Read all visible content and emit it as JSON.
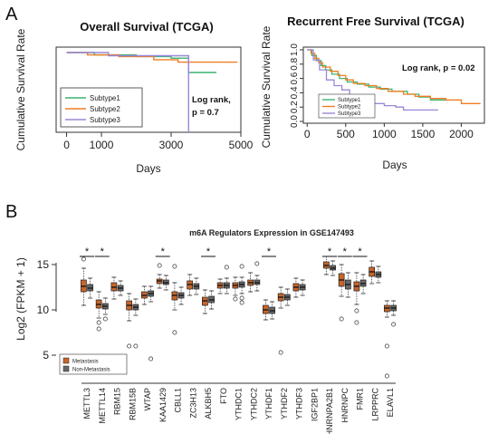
{
  "panel_labels": [
    "A",
    "B"
  ],
  "colors": {
    "subtype1": "#3cb371",
    "subtype2": "#ef7d22",
    "subtype3": "#9b87d8",
    "metastasis": "#c8652a",
    "non_metastasis": "#686868"
  },
  "chart_data": [
    {
      "type": "line",
      "title": "Overall Survival (TCGA)",
      "xlabel": "Days",
      "ylabel": "Cumulative Survival Rate",
      "xlim": [
        -300,
        5000
      ],
      "ylim": [
        0,
        1
      ],
      "xticks": [
        "0",
        "1000",
        "3000",
        "5000"
      ],
      "xtick_values": [
        0,
        1000,
        3000,
        5000
      ],
      "legend_position": "bottom-left",
      "annotation": [
        "Log rank,",
        "p = 0.7"
      ],
      "series": [
        {
          "name": "Subtype1",
          "color": "#3cb371",
          "x": [
            0,
            800,
            2000,
            3000,
            3500,
            3500,
            4300
          ],
          "y": [
            1.0,
            0.97,
            0.95,
            0.93,
            0.93,
            0.75,
            0.75
          ]
        },
        {
          "name": "Subtype2",
          "color": "#ef7d22",
          "x": [
            0,
            600,
            1500,
            2500,
            3200,
            3600,
            4900
          ],
          "y": [
            1.0,
            0.97,
            0.95,
            0.91,
            0.88,
            0.88,
            0.88
          ]
        },
        {
          "name": "Subtype3",
          "color": "#9b87d8",
          "x": [
            0,
            1200,
            2000,
            3500,
            3500
          ],
          "y": [
            1.0,
            0.96,
            0.96,
            0.96,
            0.0
          ]
        }
      ]
    },
    {
      "type": "line",
      "title": "Recurrent Free Survival (TCGA)",
      "xlabel": "Days",
      "ylabel": "Cumulative Survival Rate",
      "xlim": [
        -50,
        2300
      ],
      "ylim": [
        0,
        1
      ],
      "xticks": [
        "0",
        "500",
        "1000",
        "1500",
        "2000"
      ],
      "xtick_values": [
        0,
        500,
        1000,
        1500,
        2000
      ],
      "yticks": [
        "0.0",
        "0.2",
        "0.4",
        "0.6",
        "0.8",
        "1.0"
      ],
      "ytick_values": [
        0,
        0.2,
        0.4,
        0.6,
        0.8,
        1.0
      ],
      "legend_position": "bottom-left",
      "annotation": [
        "Log rank, p = 0.02"
      ],
      "series": [
        {
          "name": "Subtype1",
          "color": "#3cb371",
          "x": [
            0,
            60,
            120,
            180,
            240,
            320,
            420,
            520,
            650,
            800,
            950,
            1100,
            1300,
            1450,
            1600,
            1800
          ],
          "y": [
            1.0,
            0.92,
            0.85,
            0.78,
            0.72,
            0.66,
            0.6,
            0.55,
            0.52,
            0.48,
            0.45,
            0.42,
            0.38,
            0.34,
            0.3,
            0.3
          ]
        },
        {
          "name": "Subtype2",
          "color": "#ef7d22",
          "x": [
            0,
            50,
            100,
            150,
            200,
            300,
            400,
            500,
            600,
            750,
            900,
            1050,
            1250,
            1400,
            1600,
            1800,
            2000,
            2250
          ],
          "y": [
            1.0,
            0.95,
            0.88,
            0.82,
            0.76,
            0.7,
            0.64,
            0.58,
            0.53,
            0.5,
            0.46,
            0.42,
            0.38,
            0.35,
            0.32,
            0.3,
            0.25,
            0.25
          ]
        },
        {
          "name": "Subtype3",
          "color": "#9b87d8",
          "x": [
            0,
            80,
            160,
            250,
            350,
            450,
            550,
            700,
            850,
            1000,
            1150,
            1250,
            1700
          ],
          "y": [
            1.0,
            0.86,
            0.72,
            0.58,
            0.5,
            0.44,
            0.36,
            0.3,
            0.25,
            0.22,
            0.2,
            0.16,
            0.16
          ]
        }
      ]
    },
    {
      "type": "box",
      "title": "m6A Regulators Expression in GSE147493",
      "ylabel": "Log2 (FPKM + 1)",
      "ylim": [
        2,
        18
      ],
      "yticks": [
        "5",
        "10",
        "15"
      ],
      "ytick_values": [
        5,
        10,
        15
      ],
      "legend_position": "bottom-left",
      "significance_marker": "*",
      "categories": [
        "METTL3",
        "METTL14",
        "RBM15",
        "RBM15B",
        "WTAP",
        "KAA1429",
        "CBLL1",
        "ZC3H13",
        "ALKBH5",
        "FTO",
        "YTHDC1",
        "YTHDC2",
        "YTHDF1",
        "YTHDF2",
        "YTHDF3",
        "IGF2BP1",
        "HNRNPA2B1",
        "HNRNPC",
        "FMR1",
        "LRPPRC",
        "ELAVL1"
      ],
      "significant": [
        true,
        true,
        false,
        false,
        false,
        true,
        false,
        false,
        true,
        false,
        false,
        false,
        true,
        false,
        false,
        false,
        true,
        true,
        true,
        false,
        false
      ],
      "series": [
        {
          "name": "Metastasis",
          "color": "#c8652a",
          "q1": [
            12.0,
            10.2,
            12.1,
            10.0,
            11.3,
            12.9,
            11.1,
            12.3,
            10.5,
            12.4,
            12.4,
            12.7,
            9.6,
            11.0,
            12.1,
            null,
            14.6,
            12.6,
            12.1,
            13.7,
            9.8
          ],
          "median": [
            12.6,
            10.6,
            12.5,
            10.5,
            11.6,
            13.2,
            11.6,
            12.8,
            11.0,
            12.7,
            12.7,
            13.0,
            10.0,
            11.4,
            12.5,
            null,
            14.9,
            13.3,
            12.6,
            14.2,
            10.2
          ],
          "q3": [
            13.3,
            11.1,
            13.0,
            11.0,
            12.0,
            13.4,
            12.0,
            13.2,
            11.4,
            13.0,
            13.0,
            13.3,
            10.5,
            11.8,
            12.9,
            null,
            15.3,
            14.0,
            13.1,
            14.7,
            10.5
          ],
          "lo": [
            10.5,
            9.1,
            11.2,
            8.8,
            10.6,
            12.4,
            10.0,
            11.6,
            9.6,
            11.8,
            11.6,
            12.0,
            8.9,
            10.2,
            11.4,
            null,
            13.9,
            11.5,
            10.6,
            12.9,
            9.2
          ],
          "hi": [
            14.6,
            12.0,
            13.6,
            11.8,
            12.6,
            13.9,
            13.0,
            13.9,
            12.2,
            13.4,
            13.6,
            14.1,
            11.1,
            12.5,
            13.5,
            null,
            15.9,
            15.0,
            14.1,
            15.4,
            11.0
          ],
          "outliers": [
            [
              15.6
            ],
            [
              8.6,
              7.9
            ],
            [],
            [
              6.0
            ],
            [],
            [
              14.9
            ],
            [
              7.5,
              14.8
            ],
            [],
            [],
            [],
            [
              11.2
            ],
            [],
            [],
            [
              5.3
            ],
            [],
            [],
            [],
            [
              9.0
            ],
            [
              9.9,
              8.6
            ],
            [],
            [
              6.0,
              2.7
            ]
          ]
        },
        {
          "name": "Non-Metastasis",
          "color": "#686868",
          "q1": [
            12.1,
            10.1,
            12.1,
            10.0,
            11.5,
            12.8,
            11.3,
            12.3,
            10.8,
            12.4,
            12.5,
            12.8,
            9.6,
            11.1,
            12.2,
            null,
            14.4,
            12.3,
            12.6,
            13.6,
            9.9
          ],
          "median": [
            12.4,
            10.4,
            12.4,
            10.3,
            11.8,
            13.0,
            11.6,
            12.6,
            11.1,
            12.7,
            12.8,
            13.0,
            9.9,
            11.4,
            12.5,
            null,
            14.6,
            12.8,
            12.9,
            13.9,
            10.2
          ],
          "q3": [
            12.8,
            10.7,
            12.7,
            10.6,
            12.1,
            13.3,
            11.9,
            12.9,
            11.5,
            13.0,
            13.1,
            13.3,
            10.3,
            11.7,
            12.8,
            null,
            14.9,
            13.3,
            13.3,
            14.2,
            10.5
          ],
          "lo": [
            11.3,
            9.5,
            11.6,
            9.4,
            10.9,
            12.2,
            10.6,
            11.7,
            10.1,
            11.8,
            11.8,
            12.1,
            9.0,
            10.5,
            11.6,
            null,
            13.8,
            11.4,
            11.8,
            13.0,
            9.4
          ],
          "hi": [
            13.5,
            11.3,
            13.2,
            11.2,
            12.6,
            13.8,
            12.5,
            13.5,
            12.1,
            13.5,
            13.6,
            13.8,
            10.9,
            12.3,
            13.3,
            null,
            15.4,
            14.1,
            13.9,
            14.8,
            11.0
          ],
          "outliers": [
            [],
            [
              9.0
            ],
            [],
            [
              6.0
            ],
            [
              4.6
            ],
            [],
            [],
            [],
            [],
            [
              14.7
            ],
            [
              14.8,
              11.3,
              10.8
            ],
            [
              15.1
            ],
            [],
            [],
            [],
            [],
            [],
            [],
            [],
            [],
            [
              8.4
            ]
          ]
        }
      ]
    }
  ]
}
